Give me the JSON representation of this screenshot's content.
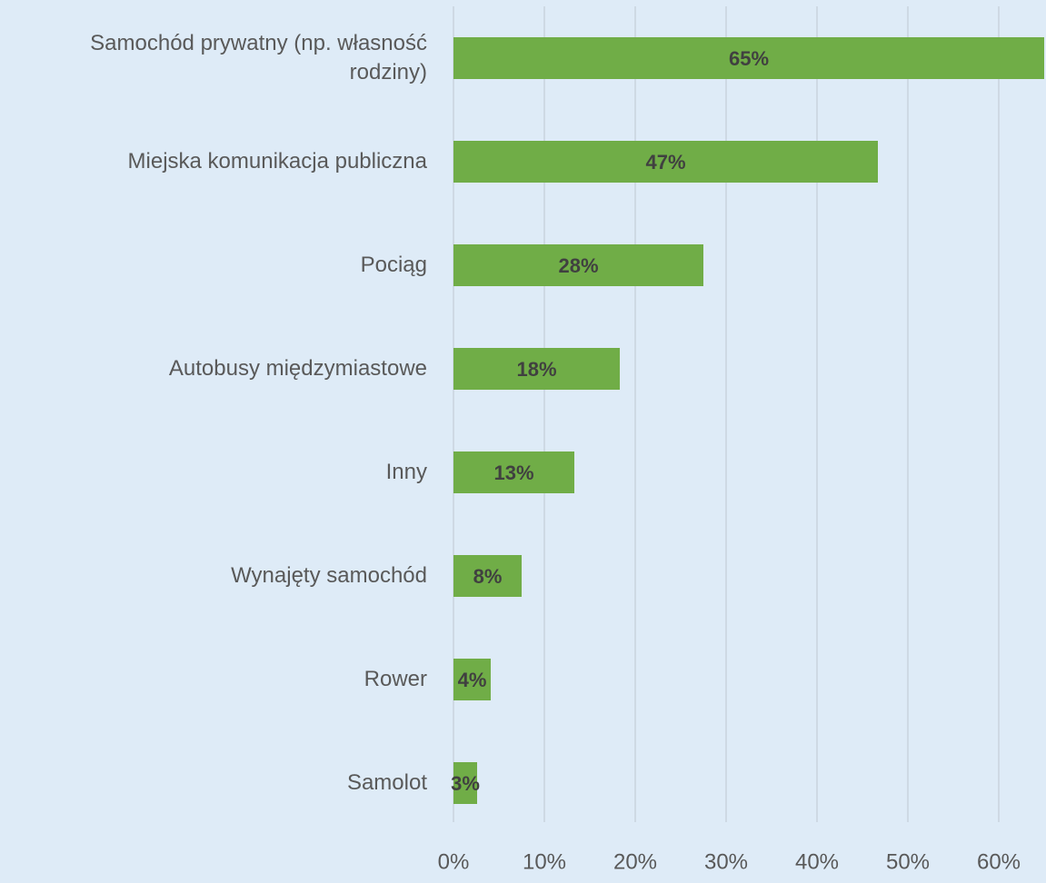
{
  "chart_data": {
    "type": "bar",
    "orientation": "horizontal",
    "categories": [
      "Samochód prywatny (np. własność rodziny)",
      "Miejska komunikacja publiczna",
      "Pociąg",
      "Autobusy międzymiastowe",
      "Inny",
      "Wynajęty samochód",
      "Rower",
      "Samolot"
    ],
    "values": [
      65,
      46.7,
      27.5,
      18.3,
      13.3,
      7.5,
      4.1,
      2.6
    ],
    "value_labels": [
      "65%",
      "47%",
      "28%",
      "18%",
      "13%",
      "8%",
      "4%",
      "3%"
    ],
    "color": "#70ad47",
    "xlim": [
      0,
      65.2
    ],
    "xticks": [
      {
        "value": 0,
        "label": "0%"
      },
      {
        "value": 10,
        "label": "10%"
      },
      {
        "value": 20,
        "label": "20%"
      },
      {
        "value": 30,
        "label": "30%"
      },
      {
        "value": 40,
        "label": "40%"
      },
      {
        "value": 50,
        "label": "50%"
      },
      {
        "value": 60,
        "label": "60%"
      }
    ],
    "grid": true
  }
}
